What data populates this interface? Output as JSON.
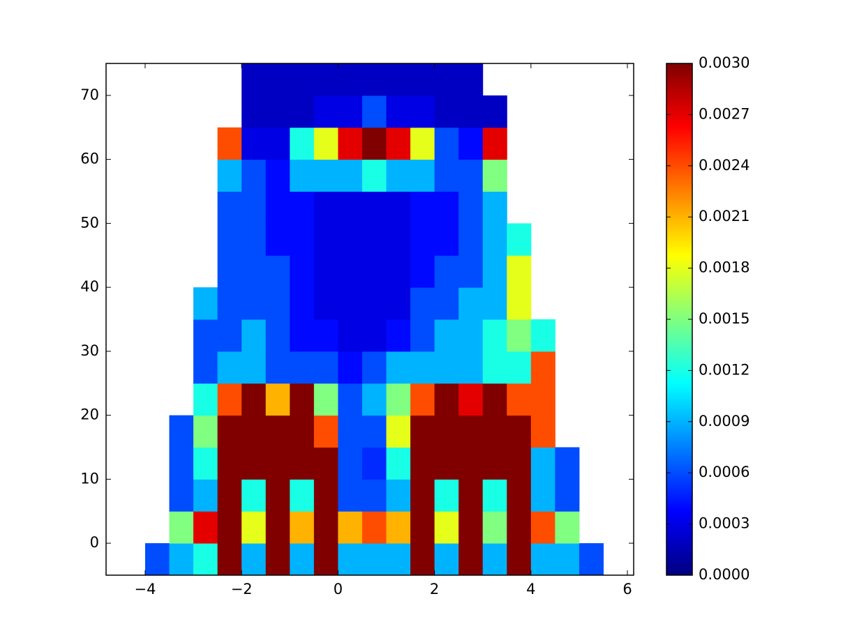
{
  "chart_data": {
    "type": "heatmap",
    "colormap": "jet",
    "x_bins": [
      -4,
      -3.5,
      -3,
      -2.5,
      -2,
      -1.5,
      -1,
      -0.5,
      0,
      0.5,
      1,
      1.5,
      2,
      2.5,
      3,
      3.5,
      4,
      4.5,
      5,
      5.5
    ],
    "y_bins": [
      -5,
      0,
      5,
      10,
      15,
      20,
      25,
      30,
      35,
      40,
      45,
      50,
      55,
      60,
      65,
      70,
      75
    ],
    "values": [
      [
        0.0006,
        0.0009,
        0.0012,
        0.003,
        0.0009,
        0.003,
        0.0009,
        0.003,
        0.0009,
        0.0009,
        0.0009,
        0.003,
        0.0009,
        0.003,
        0.0009,
        0.003,
        0.0009,
        0.0009,
        0.0006
      ],
      [
        null,
        0.0015,
        0.0027,
        0.003,
        0.0018,
        0.003,
        0.0021,
        0.003,
        0.0021,
        0.0024,
        0.0021,
        0.003,
        0.0018,
        0.003,
        0.0015,
        0.003,
        0.0024,
        0.0015,
        null
      ],
      [
        null,
        0.0006,
        0.0009,
        0.003,
        0.0012,
        0.003,
        0.0012,
        0.003,
        0.0006,
        0.0006,
        0.0009,
        0.003,
        0.0012,
        0.003,
        0.0012,
        0.003,
        0.0009,
        0.0006,
        null
      ],
      [
        null,
        0.0006,
        0.0012,
        0.003,
        0.003,
        0.003,
        0.003,
        0.003,
        0.0006,
        0.0005,
        0.0012,
        0.003,
        0.003,
        0.003,
        0.003,
        0.003,
        0.0009,
        0.0006,
        null
      ],
      [
        null,
        0.0006,
        0.0015,
        0.003,
        0.003,
        0.003,
        0.003,
        0.0024,
        0.0006,
        0.0006,
        0.0018,
        0.003,
        0.003,
        0.003,
        0.003,
        0.003,
        0.0024,
        null,
        null
      ],
      [
        null,
        null,
        0.0012,
        0.0024,
        0.003,
        0.0021,
        0.003,
        0.0015,
        0.0006,
        0.0009,
        0.0015,
        0.0024,
        0.003,
        0.0027,
        0.003,
        0.0024,
        0.0024,
        null,
        null
      ],
      [
        null,
        null,
        0.0006,
        0.0009,
        0.0009,
        0.0006,
        0.0006,
        0.0006,
        0.0004,
        0.0006,
        0.0009,
        0.0009,
        0.0009,
        0.0009,
        0.0012,
        0.0012,
        0.0024,
        null,
        null
      ],
      [
        null,
        null,
        0.0006,
        0.0006,
        0.0009,
        0.0006,
        0.0004,
        0.0004,
        0.0003,
        0.0003,
        0.0004,
        0.0006,
        0.0009,
        0.0009,
        0.0012,
        0.0015,
        0.0012,
        null,
        null
      ],
      [
        null,
        null,
        0.0009,
        0.0006,
        0.0006,
        0.0006,
        0.0004,
        0.0003,
        0.0003,
        0.0003,
        0.0003,
        0.0006,
        0.0006,
        0.0009,
        0.0009,
        0.0018,
        null,
        null,
        null
      ],
      [
        null,
        null,
        null,
        0.0006,
        0.0006,
        0.0006,
        0.0004,
        0.0003,
        0.0003,
        0.0003,
        0.0003,
        0.0004,
        0.0006,
        0.0006,
        0.0009,
        0.0018,
        null,
        null,
        null
      ],
      [
        null,
        null,
        null,
        0.0006,
        0.0006,
        0.0004,
        0.0004,
        0.0003,
        0.0003,
        0.0003,
        0.0003,
        0.0004,
        0.0004,
        0.0006,
        0.0009,
        0.0012,
        null,
        null,
        null
      ],
      [
        null,
        null,
        null,
        0.0006,
        0.0006,
        0.0004,
        0.0004,
        0.0003,
        0.0003,
        0.0003,
        0.0003,
        0.0004,
        0.0004,
        0.0006,
        0.0009,
        null,
        null,
        null,
        null
      ],
      [
        null,
        null,
        null,
        0.0009,
        0.0006,
        0.0004,
        0.0009,
        0.0009,
        0.0009,
        0.0012,
        0.0009,
        0.0009,
        0.0006,
        0.0006,
        0.0015,
        null,
        null,
        null,
        null
      ],
      [
        null,
        null,
        null,
        0.0024,
        0.0003,
        0.0003,
        0.0012,
        0.0018,
        0.0027,
        0.003,
        0.0027,
        0.0018,
        0.0006,
        0.0004,
        0.0027,
        null,
        null,
        null,
        null
      ],
      [
        null,
        null,
        null,
        null,
        0.0002,
        0.0002,
        0.0002,
        0.0003,
        0.0003,
        0.0006,
        0.0003,
        0.0003,
        0.0002,
        0.0002,
        0.0002,
        null,
        null,
        null,
        null
      ],
      [
        null,
        null,
        null,
        null,
        0.0002,
        0.0002,
        0.0002,
        0.0002,
        0.0002,
        0.0002,
        0.0002,
        0.0002,
        0.0002,
        0.0002,
        null,
        null,
        null,
        null,
        null
      ]
    ],
    "xlim": [
      -4.81,
      6.13
    ],
    "ylim": [
      -5,
      75
    ],
    "xticks": [
      {
        "value": -4,
        "label": "−4"
      },
      {
        "value": -2,
        "label": "−2"
      },
      0,
      2,
      4,
      6
    ],
    "yticks": [
      0,
      10,
      20,
      30,
      40,
      50,
      60,
      70
    ],
    "clim": [
      0,
      0.003
    ],
    "cticks": [
      {
        "value": 0,
        "label": "0.0000"
      },
      {
        "value": 0.0003,
        "label": "0.0003"
      },
      {
        "value": 0.0006,
        "label": "0.0006"
      },
      {
        "value": 0.0009,
        "label": "0.0009"
      },
      {
        "value": 0.0012,
        "label": "0.0012"
      },
      {
        "value": 0.0015,
        "label": "0.0015"
      },
      {
        "value": 0.0018,
        "label": "0.0018"
      },
      {
        "value": 0.0021,
        "label": "0.0021"
      },
      {
        "value": 0.0024,
        "label": "0.0024"
      },
      {
        "value": 0.0027,
        "label": "0.0027"
      },
      {
        "value": 0.003,
        "label": "0.0030"
      }
    ]
  }
}
